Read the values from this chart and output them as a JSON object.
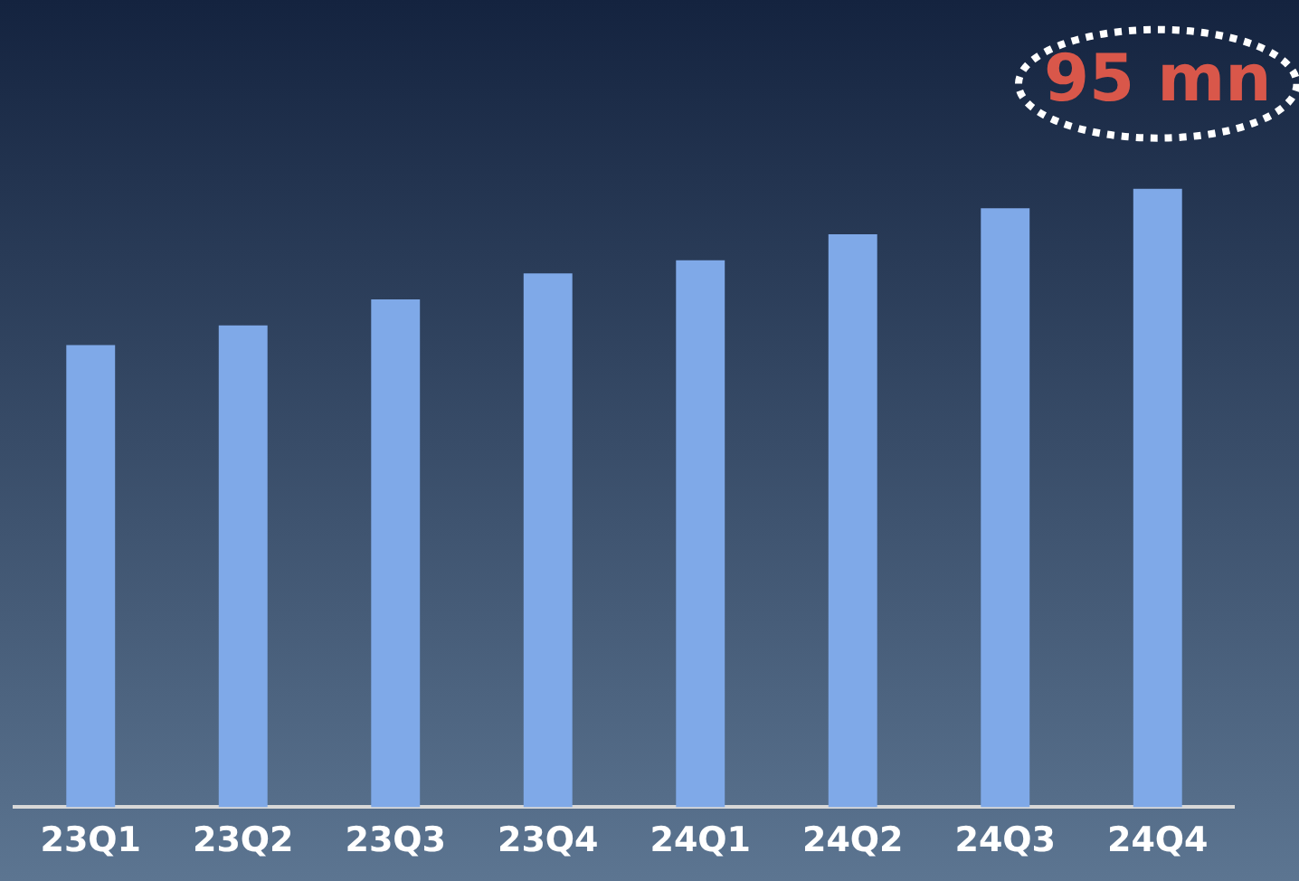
{
  "chart_data": {
    "type": "bar",
    "categories": [
      "23Q1",
      "23Q2",
      "23Q3",
      "23Q4",
      "24Q1",
      "24Q2",
      "24Q3",
      "24Q4"
    ],
    "values": [
      71,
      74,
      78,
      82,
      84,
      88,
      92,
      95
    ],
    "value_labels": [
      null,
      null,
      null,
      null,
      null,
      null,
      null,
      "95 mn"
    ],
    "color": "#7fa9e8",
    "ylim": [
      0,
      124
    ],
    "grid": false,
    "legend": false,
    "tick_labels": "x"
  }
}
